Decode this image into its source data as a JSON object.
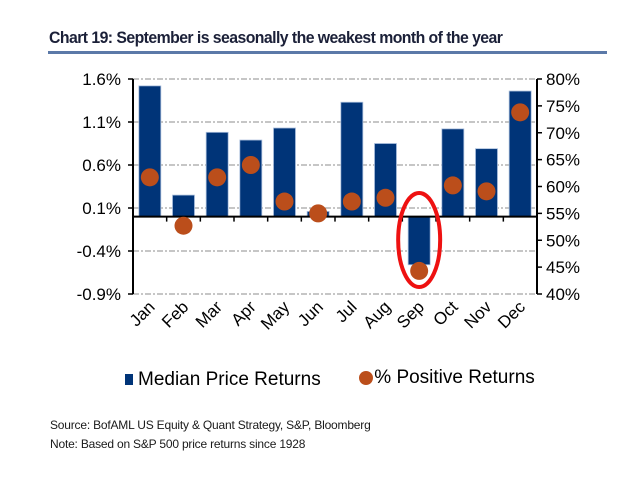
{
  "title": "Chart 19: September is seasonally the weakest month of the year",
  "footer": {
    "source": "Source: BofAML US Equity & Quant Strategy, S&P, Bloomberg",
    "note": "Note: Based on S&P 500 price returns since 1928"
  },
  "colors": {
    "bar": "#003478",
    "dot": "#bb4e1b",
    "highlight": "#ee1111",
    "title_rule": "#5b79a8"
  },
  "chart_data": {
    "type": "bar",
    "title": "Chart 19: September is seasonally the weakest month of the year",
    "categories": [
      "Jan",
      "Feb",
      "Mar",
      "Apr",
      "May",
      "Jun",
      "Jul",
      "Aug",
      "Sep",
      "Oct",
      "Nov",
      "Dec"
    ],
    "series": [
      {
        "name": "Median Price Returns",
        "type": "bar",
        "axis": "left",
        "unit": "%",
        "values": [
          1.52,
          0.25,
          0.98,
          0.89,
          1.03,
          0.06,
          1.33,
          0.85,
          -0.56,
          1.02,
          0.79,
          1.46
        ]
      },
      {
        "name": "% Positive Returns",
        "type": "scatter",
        "axis": "right",
        "unit": "%",
        "values": [
          61.7,
          52.7,
          61.7,
          64.0,
          57.2,
          55.0,
          57.2,
          57.9,
          44.3,
          60.2,
          59.1,
          73.8
        ]
      }
    ],
    "left_axis": {
      "ylim": [
        -0.9,
        1.6
      ],
      "ticks": [
        1.6,
        1.1,
        0.6,
        0.1,
        -0.4,
        -0.9
      ],
      "tick_labels": [
        "1.6%",
        "1.1%",
        "0.6%",
        "0.1%",
        "-0.4%",
        "-0.9%"
      ]
    },
    "right_axis": {
      "ylim": [
        40,
        80
      ],
      "ticks": [
        80,
        75,
        70,
        65,
        60,
        55,
        50,
        45,
        40
      ],
      "tick_labels": [
        "80%",
        "75%",
        "70%",
        "65%",
        "60%",
        "55%",
        "50%",
        "45%",
        "40%"
      ]
    },
    "grid": true,
    "legend": {
      "position": "bottom",
      "entries": [
        "Median Price Returns",
        "% Positive Returns"
      ]
    },
    "annotations": [
      {
        "type": "ellipse-highlight",
        "category": "Sep",
        "description": "red circle around September"
      }
    ],
    "xlabel": "",
    "ylabel": ""
  }
}
